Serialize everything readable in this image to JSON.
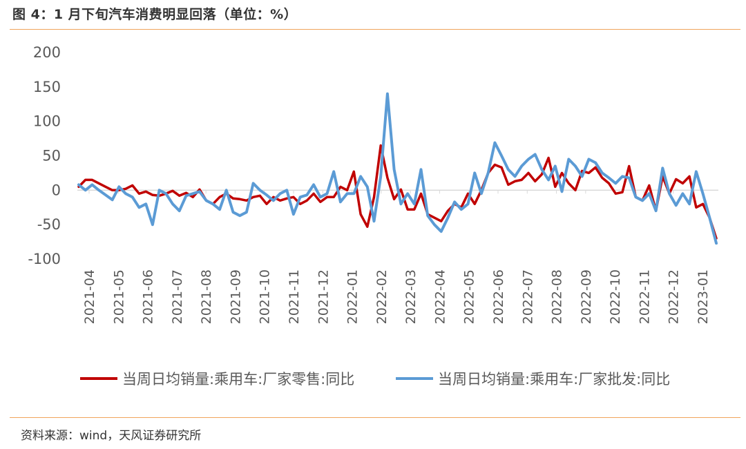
{
  "header": {
    "title": "图 4：1 月下旬汽车消费明显回落（单位：%）"
  },
  "footer": {
    "source": "资料来源：wind，天风证券研究所"
  },
  "colors": {
    "retail": "#c00000",
    "wholesale": "#5b9bd5",
    "accent_rule": "#f0a35a",
    "axis": "#d9d9d9",
    "text": "#595959"
  },
  "chart_data": {
    "type": "line",
    "title": "1 月下旬汽车消费明显回落",
    "ylim": [
      -100,
      200
    ],
    "y_ticks": [
      "200",
      "150",
      "100",
      "50",
      "0",
      "-50",
      "-100"
    ],
    "x_ticks": [
      "2021-04",
      "2021-05",
      "2021-06",
      "2021-07",
      "2021-08",
      "2021-09",
      "2021-10",
      "2021-11",
      "2021-12",
      "2022-01",
      "2022-02",
      "2022-03",
      "2022-04",
      "2022-05",
      "2022-06",
      "2022-07",
      "2022-08",
      "2022-09",
      "2022-10",
      "2022-11",
      "2022-12",
      "2023-01"
    ],
    "grid": false,
    "legend_position": "bottom",
    "series": [
      {
        "name": "当周日均销量:乘用车:厂家零售:同比",
        "color": "#c00000",
        "values": [
          5,
          15,
          15,
          10,
          5,
          0,
          0,
          2,
          7,
          -5,
          -2,
          -7,
          -8,
          -5,
          -1,
          -8,
          -4,
          -10,
          1,
          -15,
          -20,
          -10,
          -5,
          -12,
          -13,
          -15,
          -10,
          -8,
          -20,
          -10,
          -15,
          -12,
          -10,
          -20,
          -15,
          -5,
          -17,
          -10,
          -10,
          5,
          0,
          27,
          -35,
          -53,
          -10,
          65,
          18,
          -13,
          1,
          -28,
          -28,
          -5,
          -35,
          -40,
          -45,
          -30,
          -20,
          -25,
          -5,
          -20,
          0,
          25,
          37,
          33,
          8,
          13,
          15,
          25,
          13,
          23,
          47,
          5,
          25,
          10,
          0,
          28,
          25,
          33,
          18,
          10,
          -5,
          -3,
          35,
          -10,
          -15,
          7,
          -30,
          20,
          -5,
          16,
          10,
          20,
          -25,
          -20,
          -40,
          -70
        ]
      },
      {
        "name": "当周日均销量:乘用车:厂家批发:同比",
        "color": "#5b9bd5",
        "values": [
          8,
          0,
          8,
          0,
          -7,
          -14,
          5,
          -5,
          -10,
          -25,
          -20,
          -50,
          0,
          -5,
          -20,
          -30,
          -8,
          -5,
          -2,
          -15,
          -20,
          -28,
          0,
          -32,
          -37,
          -32,
          10,
          0,
          -7,
          -15,
          -5,
          0,
          -35,
          -10,
          -7,
          8,
          -10,
          -5,
          27,
          -17,
          -5,
          -5,
          20,
          5,
          -45,
          20,
          140,
          30,
          -20,
          -5,
          -20,
          30,
          -37,
          -50,
          -60,
          -40,
          -17,
          -28,
          -20,
          25,
          -5,
          25,
          69,
          50,
          30,
          20,
          35,
          45,
          52,
          30,
          15,
          35,
          -2,
          45,
          35,
          20,
          45,
          40,
          25,
          18,
          10,
          20,
          18,
          -10,
          -15,
          -5,
          -30,
          32,
          -5,
          -22,
          -5,
          -20,
          27,
          -5,
          -40,
          -77
        ]
      }
    ]
  }
}
